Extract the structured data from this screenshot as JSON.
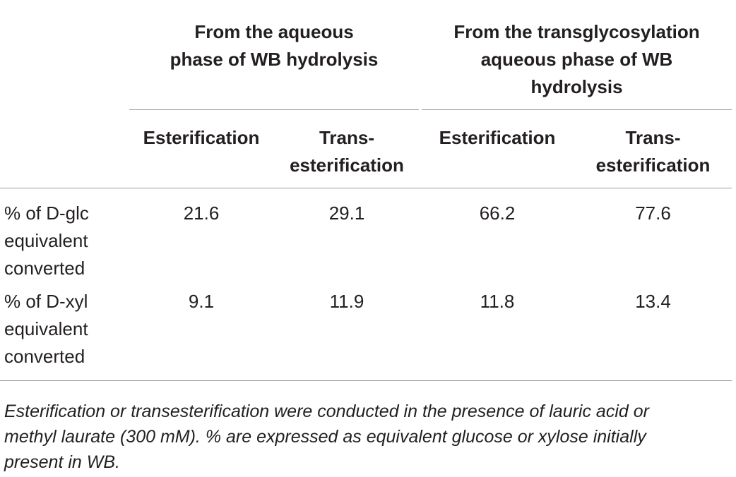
{
  "table": {
    "group_headers": [
      {
        "lines": [
          "From the aqueous",
          "phase of WB hydrolysis"
        ]
      },
      {
        "lines": [
          "From the transglycosylation",
          "aqueous phase of WB",
          "hydrolysis"
        ]
      }
    ],
    "sub_headers": [
      {
        "lines": [
          "Esterification"
        ]
      },
      {
        "lines": [
          "Trans-",
          "esterification"
        ]
      },
      {
        "lines": [
          "Esterification"
        ]
      },
      {
        "lines": [
          "Trans-",
          "esterification"
        ]
      }
    ],
    "rows": [
      {
        "label_lines": [
          "% of D-glc",
          "equivalent",
          "converted"
        ],
        "values": [
          "21.6",
          "29.1",
          "66.2",
          "77.6"
        ]
      },
      {
        "label_lines": [
          "% of D-xyl",
          "equivalent",
          "converted"
        ],
        "values": [
          "9.1",
          "11.9",
          "11.8",
          "13.4"
        ]
      }
    ]
  },
  "footnote": {
    "lines": [
      "Esterification or transesterification were conducted in the presence of lauric acid or",
      "methyl laurate (300 mM). % are expressed as equivalent glucose or xylose initially",
      "present in WB."
    ]
  }
}
